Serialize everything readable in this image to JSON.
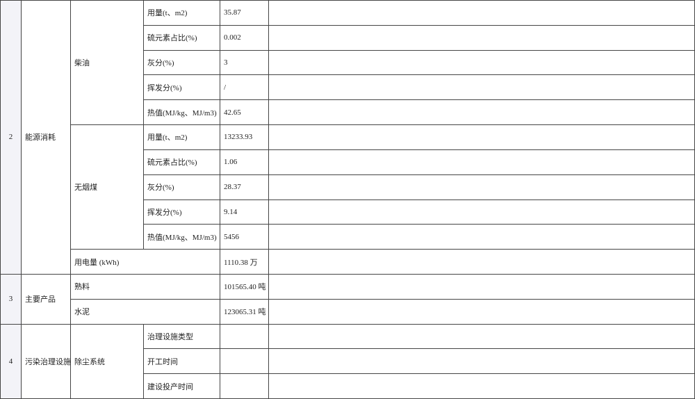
{
  "sections": [
    {
      "index": "2",
      "category": "能源消耗",
      "groups": [
        {
          "name": "柴油",
          "items": [
            {
              "label": "用量(t、m2)",
              "value": "35.87"
            },
            {
              "label": "硫元素占比(%)",
              "value": "0.002"
            },
            {
              "label": "灰分(%)",
              "value": "3"
            },
            {
              "label": "挥发分(%)",
              "value": "/"
            },
            {
              "label": "热值(MJ/kg、MJ/m3)",
              "value": "42.65"
            }
          ]
        },
        {
          "name": "无烟煤",
          "items": [
            {
              "label": "用量(t、m2)",
              "value": "13233.93"
            },
            {
              "label": "硫元素占比(%)",
              "value": "1.06"
            },
            {
              "label": "灰分(%)",
              "value": "28.37"
            },
            {
              "label": "挥发分(%)",
              "value": "9.14"
            },
            {
              "label": "热值(MJ/kg、MJ/m3)",
              "value": "5456"
            }
          ]
        }
      ],
      "electricity": {
        "label": "用电量 (kWh)",
        "value": "1110.38 万"
      }
    },
    {
      "index": "3",
      "category": "主要产品",
      "products": [
        {
          "label": "熟料",
          "value": "101565.40 吨"
        },
        {
          "label": "水泥",
          "value": "123065.31 吨"
        }
      ]
    },
    {
      "index": "4",
      "category": "污染治理设施",
      "system": "除尘系统",
      "items": [
        {
          "label": "治理设施类型",
          "value": ""
        },
        {
          "label": "开工时间",
          "value": ""
        },
        {
          "label": "建设投产时间",
          "value": ""
        }
      ]
    }
  ]
}
